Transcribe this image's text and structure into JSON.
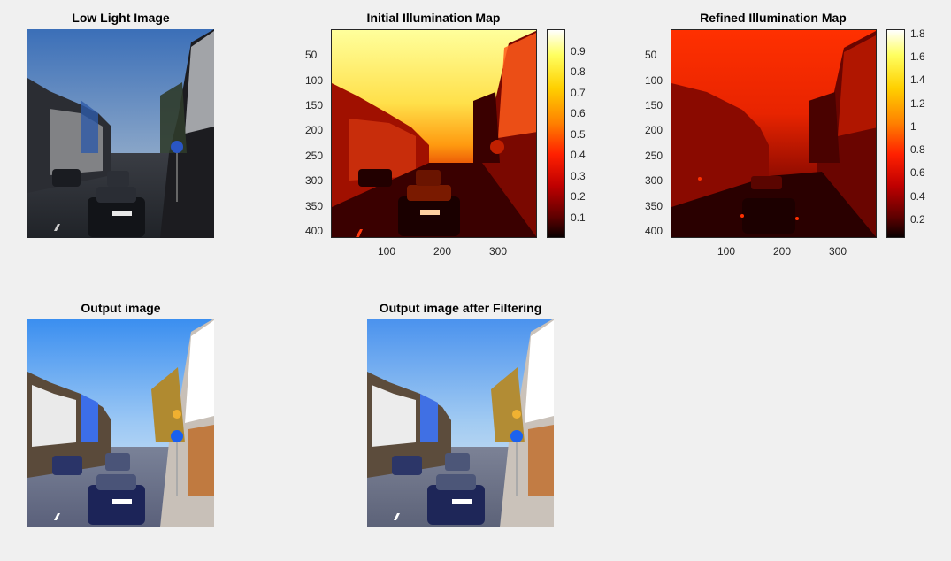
{
  "figure": {
    "background": "#f0f0f0",
    "panels": {
      "low_light": {
        "title": "Low Light Image"
      },
      "initial_map": {
        "title": "Initial Illumination Map",
        "yticks": [
          "50",
          "100",
          "150",
          "200",
          "250",
          "300",
          "350",
          "400"
        ],
        "xticks": [
          "100",
          "200",
          "300"
        ],
        "colorbar_ticks": [
          "0.9",
          "0.8",
          "0.7",
          "0.6",
          "0.5",
          "0.4",
          "0.3",
          "0.2",
          "0.1"
        ],
        "colormap": "hot"
      },
      "refined_map": {
        "title": "Refined Illumination Map",
        "yticks": [
          "50",
          "100",
          "150",
          "200",
          "250",
          "300",
          "350",
          "400"
        ],
        "xticks": [
          "100",
          "200",
          "300"
        ],
        "colorbar_ticks": [
          "1.8",
          "1.6",
          "1.4",
          "1.2",
          "1",
          "0.8",
          "0.6",
          "0.4",
          "0.2"
        ],
        "colormap": "hot"
      },
      "output": {
        "title": "Output image"
      },
      "output_filtered": {
        "title": "Output image after Filtering"
      }
    }
  }
}
